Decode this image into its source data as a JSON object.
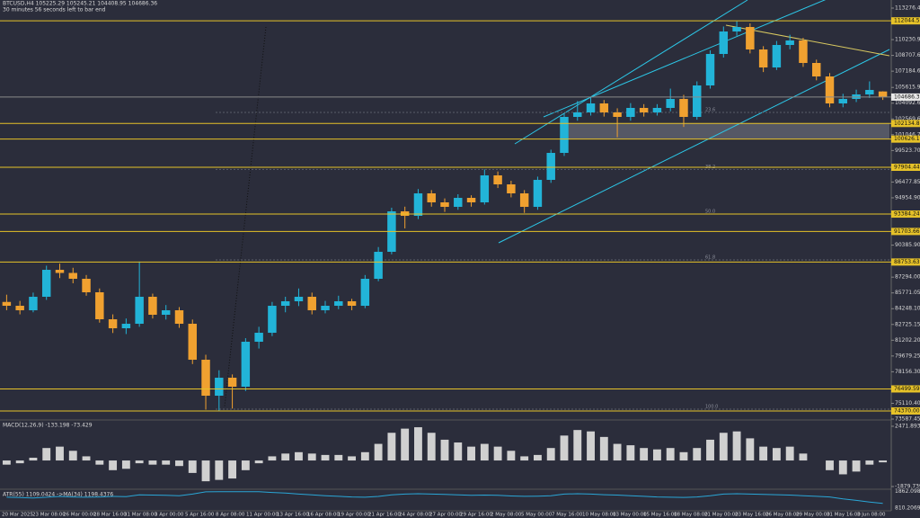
{
  "chart_data": {
    "type": "candlestick",
    "symbol_line": "BTCUSD,H4  105225.29 105245.21 104408.95 104686.36",
    "timer_line": "30 minutes 56 seconds left to bar end",
    "up_color": "#22b4d8",
    "down_color": "#f0a130",
    "level_color": "#e6c229",
    "ylim": [
      73587.45,
      114058
    ],
    "yticks": [
      113276.45,
      110230.91,
      {
        "value": 108707.6,
        "label": "108707.60"
      },
      107184.65,
      105615.95,
      {
        "value": 104092.6,
        "label": "104092.60"
      },
      102569.65,
      {
        "value": 101046.7,
        "label": "101046.70"
      },
      {
        "value": 99523.7,
        "label": "99523.70"
      },
      96477.85,
      {
        "value": 94954.9,
        "label": "94954.90"
      },
      {
        "value": 90385.9,
        "label": "90385.90"
      },
      {
        "value": 87294,
        "label": "87294.00"
      },
      85771.05,
      {
        "value": 84248.1,
        "label": "84248.10"
      },
      82725.15,
      {
        "value": 81202.2,
        "label": "81202.20"
      },
      79679.25,
      {
        "value": 78156.3,
        "label": "78156.30"
      },
      {
        "value": 75110.4,
        "label": "75110.40"
      },
      73587.45
    ],
    "levels": [
      112044.56,
      102134.89,
      100626.15,
      97904.44,
      93384.24,
      91703.66,
      88753.63,
      76499.59,
      {
        "value": 74370,
        "label": "74370.00"
      }
    ],
    "current_price": 104686.36,
    "fib": [
      {
        "label": "23.6",
        "price": 103200
      },
      {
        "label": "38.2",
        "price": 97700
      },
      {
        "label": "50.0",
        "price": 93390
      },
      {
        "label": "61.8",
        "price": 88960
      },
      {
        "label": "100.0",
        "price": 74540
      }
    ],
    "ohlc": [
      [
        84900,
        85600,
        84100,
        84529
      ],
      [
        84529,
        85000,
        83700,
        84095
      ],
      [
        84095,
        85800,
        83900,
        85398
      ],
      [
        85398,
        88400,
        85100,
        88003
      ],
      [
        88003,
        88600,
        87200,
        87700
      ],
      [
        87700,
        88200,
        86700,
        87135
      ],
      [
        87135,
        87500,
        85500,
        85832
      ],
      [
        85832,
        86200,
        82900,
        83226
      ],
      [
        83226,
        83700,
        81900,
        82358
      ],
      [
        82358,
        83300,
        81800,
        82792
      ],
      [
        82792,
        88800,
        82500,
        85398
      ],
      [
        85398,
        85700,
        83300,
        83661
      ],
      [
        83661,
        84600,
        83200,
        84095
      ],
      [
        84095,
        84400,
        82400,
        82792
      ],
      [
        82792,
        83200,
        78900,
        79318
      ],
      [
        79318,
        79800,
        74500,
        75845
      ],
      [
        75845,
        78300,
        74400,
        77581
      ],
      [
        77581,
        77900,
        74600,
        76713
      ],
      [
        76713,
        81400,
        76300,
        81055
      ],
      [
        81055,
        82500,
        80400,
        81923
      ],
      [
        81923,
        84900,
        81600,
        84529
      ],
      [
        84529,
        85400,
        83900,
        84964
      ],
      [
        84964,
        86200,
        84500,
        85398
      ],
      [
        85398,
        85800,
        83700,
        84095
      ],
      [
        84095,
        85000,
        83800,
        84529
      ],
      [
        84529,
        85500,
        84200,
        84964
      ],
      [
        84964,
        85200,
        84100,
        84529
      ],
      [
        84529,
        87500,
        84300,
        87135
      ],
      [
        87135,
        90200,
        86900,
        89740
      ],
      [
        89740,
        94000,
        89500,
        93648
      ],
      [
        93648,
        94100,
        92000,
        93214
      ],
      [
        93214,
        95800,
        92900,
        95385
      ],
      [
        95385,
        95700,
        94100,
        94517
      ],
      [
        94517,
        94900,
        93600,
        94082
      ],
      [
        94082,
        95300,
        93800,
        94951
      ],
      [
        94951,
        95200,
        94100,
        94517
      ],
      [
        94517,
        97700,
        94300,
        97122
      ],
      [
        97122,
        97500,
        95900,
        96254
      ],
      [
        96254,
        96600,
        95000,
        95385
      ],
      [
        95385,
        95700,
        93500,
        94082
      ],
      [
        94082,
        97000,
        93800,
        96688
      ],
      [
        96688,
        99600,
        96400,
        99293
      ],
      [
        99293,
        103100,
        99000,
        102768
      ],
      [
        102768,
        104300,
        102400,
        103202
      ],
      [
        103202,
        104700,
        102900,
        104070
      ],
      [
        104070,
        104400,
        102800,
        103202
      ],
      [
        103202,
        103600,
        100800,
        102768
      ],
      [
        102768,
        104100,
        102400,
        103636
      ],
      [
        103636,
        104000,
        102800,
        103202
      ],
      [
        103202,
        104000,
        102900,
        103636
      ],
      [
        103636,
        105500,
        103300,
        104504
      ],
      [
        104504,
        104900,
        101800,
        102768
      ],
      [
        102768,
        106200,
        102500,
        105807
      ],
      [
        105807,
        109200,
        105500,
        108847
      ],
      [
        108847,
        111500,
        108500,
        111018
      ],
      [
        111018,
        112000,
        110600,
        111452
      ],
      [
        111452,
        111800,
        108900,
        109281
      ],
      [
        109281,
        109600,
        107100,
        107544
      ],
      [
        107544,
        110100,
        107300,
        109715
      ],
      [
        109715,
        110700,
        109300,
        110150
      ],
      [
        110150,
        110400,
        107600,
        107979
      ],
      [
        107979,
        108300,
        106300,
        106676
      ],
      [
        106676,
        107000,
        103700,
        104070
      ],
      [
        104070,
        105000,
        103700,
        104504
      ],
      [
        104504,
        105400,
        104200,
        104939
      ],
      [
        104939,
        106200,
        104600,
        105373
      ],
      [
        105225.29,
        105245.21,
        104408.95,
        104686.36
      ]
    ],
    "time_labels": [
      "20 Mar 2025",
      "23 Mar 08:00",
      "26 Mar 00:00",
      "28 Mar 16:00",
      "31 Mar 08:00",
      "3 Apr 00:00",
      "5 Apr 16:00",
      "8 Apr 08:00",
      "11 Apr 00:00",
      "13 Apr 16:00",
      "16 Apr 08:00",
      "19 Apr 00:00",
      "21 Apr 16:00",
      "24 Apr 08:00",
      "27 Apr 00:00",
      "29 Apr 16:00",
      "2 May 08:00",
      "5 May 00:00",
      "7 May 16:00",
      "10 May 08:00",
      "13 May 00:00",
      "15 May 16:00",
      "18 May 08:00",
      "21 May 00:00",
      "23 May 16:00",
      "26 May 08:00",
      "29 May 00:00",
      "31 May 16:00",
      "3 Jun 08:00"
    ],
    "macd": {
      "label": "MACD(12,26,9) -133.198 -73.429",
      "color": "#d0d0d0",
      "ylim": [
        -2010,
        2860
      ],
      "yticks": [
        2471.893,
        -1879.739
      ],
      "values": [
        -300,
        -200,
        200,
        900,
        1000,
        700,
        300,
        -300,
        -700,
        -600,
        -200,
        -300,
        -300,
        -400,
        -900,
        -1500,
        -1400,
        -1300,
        -700,
        -200,
        300,
        500,
        600,
        500,
        400,
        400,
        300,
        600,
        1200,
        2000,
        2300,
        2400,
        2000,
        1500,
        1300,
        1000,
        1200,
        1000,
        700,
        300,
        400,
        900,
        1800,
        2200,
        2100,
        1700,
        1200,
        1100,
        900,
        800,
        900,
        600,
        900,
        1500,
        2000,
        2100,
        1600,
        1000,
        900,
        1000,
        500,
        0,
        -700,
        -1000,
        -800,
        -300,
        -133.198
      ]
    },
    "atr": {
      "label": "ATR(55) 1109.0424 ->MA(34) 1198.4376",
      "color": "#2aa6d6",
      "ylim": [
        700,
        1950
      ],
      "yticks": [
        1862.0989,
        810.2069
      ],
      "values": [
        1500,
        1480,
        1450,
        1500,
        1550,
        1520,
        1500,
        1520,
        1550,
        1540,
        1650,
        1640,
        1620,
        1600,
        1700,
        1840,
        1850,
        1850,
        1850,
        1850,
        1800,
        1760,
        1700,
        1650,
        1600,
        1560,
        1520,
        1500,
        1550,
        1650,
        1700,
        1720,
        1700,
        1680,
        1650,
        1620,
        1640,
        1620,
        1580,
        1560,
        1570,
        1600,
        1700,
        1720,
        1700,
        1660,
        1640,
        1600,
        1560,
        1520,
        1500,
        1490,
        1520,
        1600,
        1700,
        1720,
        1700,
        1680,
        1660,
        1640,
        1600,
        1560,
        1520,
        1400,
        1300,
        1200,
        1109.0424
      ]
    }
  }
}
